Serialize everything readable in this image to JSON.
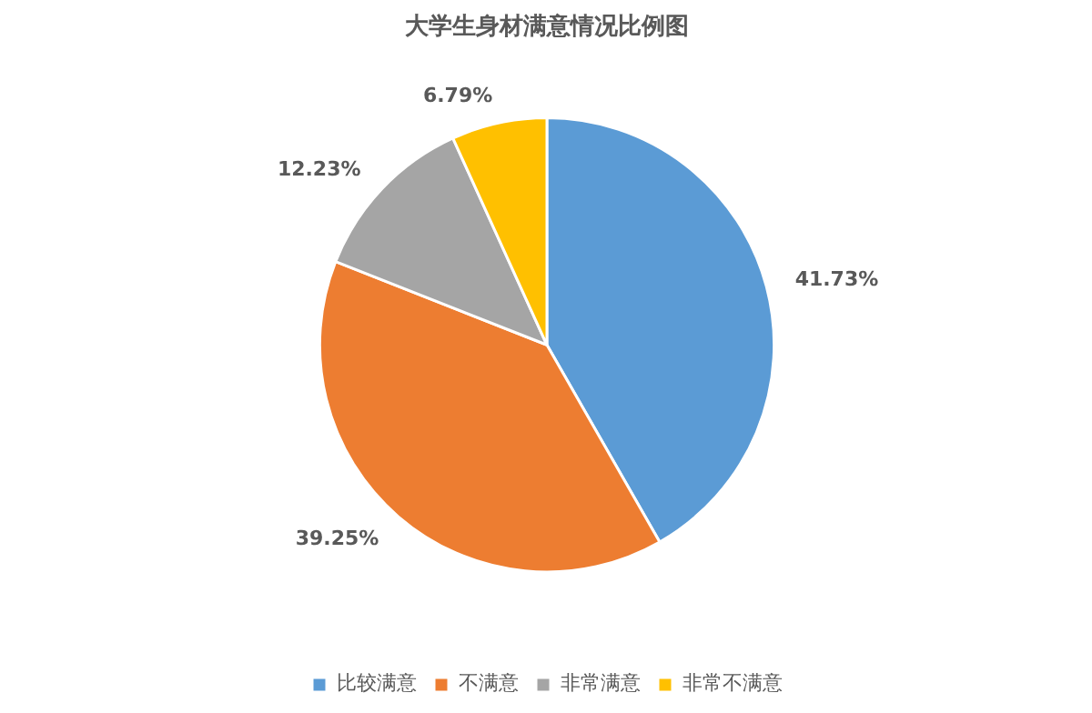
{
  "chart_data": {
    "type": "pie",
    "title": "大学生身材满意情况比例图",
    "categories": [
      "比较满意",
      "不满意",
      "非常满意",
      "非常不满意"
    ],
    "values": [
      41.73,
      39.25,
      12.23,
      6.79
    ],
    "value_labels": [
      "41.73%",
      "39.25%",
      "12.23%",
      "6.79%"
    ],
    "colors": [
      "#5b9bd5",
      "#ed7d31",
      "#a5a5a5",
      "#ffc000"
    ],
    "legend": "bottom"
  }
}
